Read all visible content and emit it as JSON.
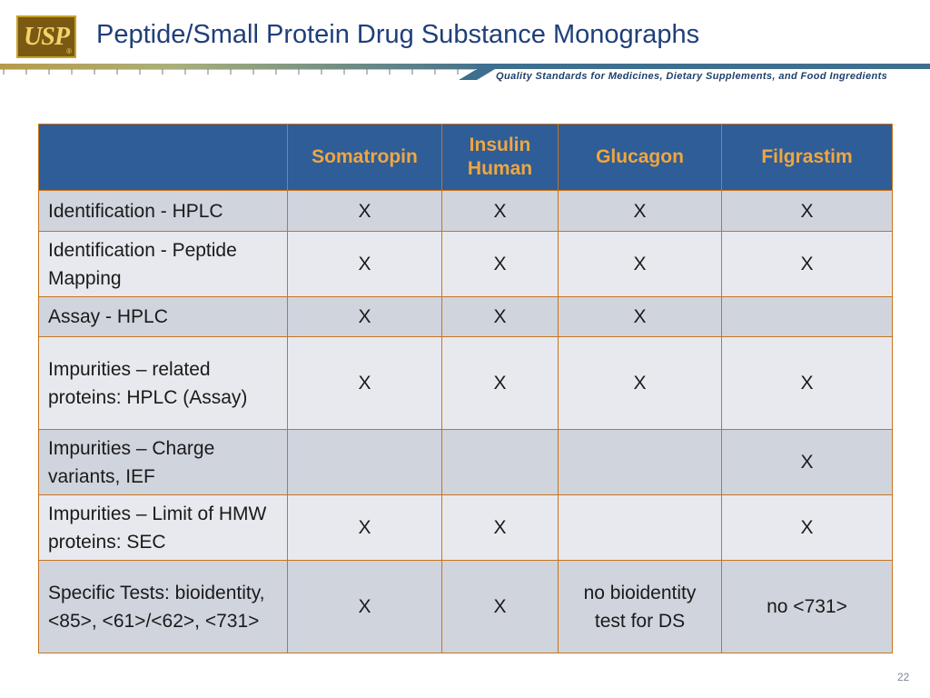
{
  "header": {
    "logo_text": "USP",
    "logo_reg": "®",
    "title": "Peptide/Small Protein Drug Substance Monographs",
    "tagline": "Quality Standards for Medicines, Dietary Supplements, and Food Ingredients",
    "colors": {
      "title": "#1f3f7a",
      "header_bg": "#2e5d97",
      "header_text": "#f0a640",
      "border": "#c8741e"
    }
  },
  "table": {
    "columns": [
      "",
      "Somatropin",
      "Insulin Human",
      "Glucagon",
      "Filgrastim"
    ],
    "rows": [
      {
        "label": "Identification - HPLC",
        "cells": [
          "X",
          "X",
          "X",
          "X"
        ]
      },
      {
        "label": "Identification - Peptide Mapping",
        "cells": [
          "X",
          "X",
          "X",
          "X"
        ]
      },
      {
        "label": "Assay - HPLC",
        "cells": [
          "X",
          "X",
          "X",
          ""
        ]
      },
      {
        "label": "Impurities – related proteins: HPLC (Assay)",
        "cells": [
          "X",
          "X",
          "X",
          "X"
        ]
      },
      {
        "label": "Impurities – Charge variants, IEF",
        "cells": [
          "",
          "",
          "",
          "X"
        ]
      },
      {
        "label": "Impurities – Limit of HMW proteins: SEC",
        "cells": [
          "X",
          "X",
          "",
          "X"
        ]
      },
      {
        "label": "Specific Tests: bioidentity, <85>, <61>/<62>, <731>",
        "cells": [
          "X",
          "X",
          "no bioidentity test for DS",
          "no <731>"
        ]
      }
    ]
  },
  "footer": {
    "page_number": "22"
  }
}
